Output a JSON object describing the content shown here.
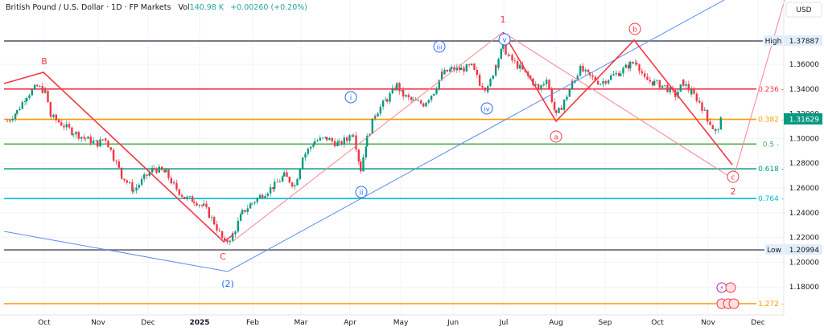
{
  "header": {
    "symbol_title": "British Pound / U.S. Dollar · 1D · FP Markets",
    "vol_label": "Vol",
    "vol_value": "140.98 K",
    "change": "+0.00260 (+0.20%)"
  },
  "price_axis": {
    "currency": "USD",
    "ticks": [
      "1.36000",
      "1.34000",
      "1.30000",
      "1.28000",
      "1.26000",
      "1.24000",
      "1.22000",
      "1.20000",
      "1.18000"
    ],
    "current_price": "1.31629",
    "high_label": "High",
    "high_value": "1.37887",
    "low_label": "Low",
    "low_value": "1.20994"
  },
  "time_axis": {
    "labels": [
      "Oct",
      "Nov",
      "Dec",
      "2025",
      "Feb",
      "Mar",
      "Apr",
      "May",
      "Jun",
      "Jul",
      "Aug",
      "Sep",
      "Oct",
      "Nov",
      "Dec"
    ]
  },
  "fib_levels": [
    {
      "label": "0.236",
      "price": 1.34,
      "color": "#f23645"
    },
    {
      "label": "0.382",
      "price": 1.3155,
      "color": "#ff9800"
    },
    {
      "label": "0.5",
      "price": 1.2955,
      "color": "#4caf50"
    },
    {
      "label": "0.618",
      "price": 1.2755,
      "color": "#089981"
    },
    {
      "label": "0.764",
      "price": 1.2515,
      "color": "#00bcd4"
    },
    {
      "label": "1.272",
      "price": 1.1665,
      "color": "#ff9800"
    }
  ],
  "wave_labels": {
    "B": "B",
    "C": "C",
    "wave1": "1",
    "wave2": "2",
    "wave2_paren": "(2)",
    "i": "i",
    "ii": "ii",
    "iii": "iii",
    "iv": "iv",
    "v": "v",
    "a": "a",
    "b": "b",
    "c": "c"
  },
  "colors": {
    "up": "#089981",
    "down": "#f23645",
    "elliott_red": "#f23645",
    "elliott_blue": "#2962ff",
    "price_badge": "#089981",
    "high_low_line": "#787b86"
  },
  "chart_data": {
    "type": "candlestick",
    "title": "British Pound / U.S. Dollar · 1D · FP Markets",
    "xlabel": "",
    "ylabel": "USD",
    "ylim": [
      1.16,
      1.39
    ],
    "x_range": [
      "2024-09",
      "2025-12"
    ],
    "approx_monthly_closes": {
      "categories": [
        "Oct 2024",
        "Nov 2024",
        "Dec 2024",
        "Jan 2025",
        "Feb 2025",
        "Mar 2025",
        "Apr 2025",
        "May 2025",
        "Jun 2025",
        "Jul 2025",
        "Aug 2025",
        "Sep 2025",
        "Oct 2025",
        "Nov 2025"
      ],
      "values": [
        1.305,
        1.272,
        1.252,
        1.238,
        1.257,
        1.292,
        1.329,
        1.344,
        1.372,
        1.322,
        1.35,
        1.345,
        1.33,
        1.316
      ]
    },
    "horizontal_levels": [
      {
        "name": "High",
        "value": 1.37887
      },
      {
        "name": "0.236",
        "value": 1.34
      },
      {
        "name": "0.382",
        "value": 1.3155
      },
      {
        "name": "0.5",
        "value": 1.2955
      },
      {
        "name": "0.618",
        "value": 1.2755
      },
      {
        "name": "0.764",
        "value": 1.2515
      },
      {
        "name": "Low",
        "value": 1.20994
      },
      {
        "name": "1.272",
        "value": 1.1665
      }
    ],
    "current_price": 1.31629,
    "annotations": [
      "B",
      "C",
      "(2)",
      "i",
      "ii",
      "iii",
      "iv",
      "v",
      "1",
      "a",
      "b",
      "c",
      "2"
    ]
  }
}
